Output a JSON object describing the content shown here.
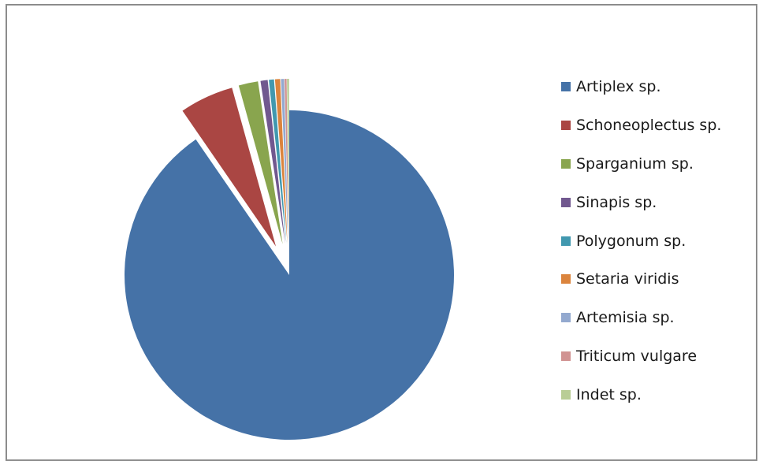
{
  "chart_data": {
    "type": "pie",
    "title": "",
    "labels": [
      "Artiplex sp.",
      "Schoneoplectus sp.",
      "Sparganium sp.",
      "Sinapis sp.",
      "Polygonum sp.",
      "Setaria viridis",
      "Artemisia sp.",
      "Triticum vulgare",
      "Indet sp."
    ],
    "values": [
      90.4,
      5.3,
      1.9,
      0.7,
      0.5,
      0.5,
      0.3,
      0.2,
      0.2
    ],
    "colors": [
      "#4572A7",
      "#AA4643",
      "#89A54E",
      "#71588F",
      "#4198AF",
      "#DB843D",
      "#93A9CF",
      "#D19392",
      "#B9CD96"
    ],
    "exploded_slice": "Artiplex sp.",
    "legend_position": "right",
    "grid": false
  }
}
